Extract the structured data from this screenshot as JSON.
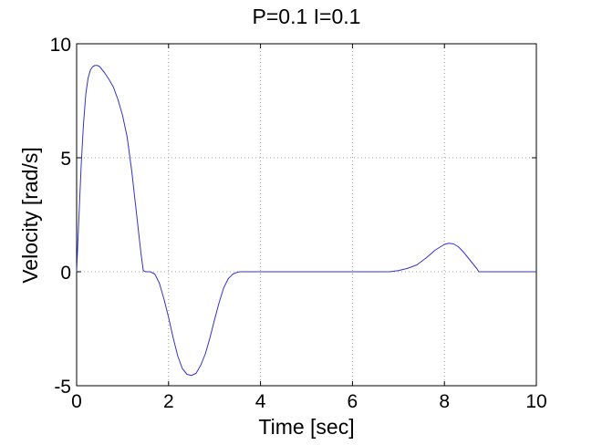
{
  "chart_data": {
    "type": "line",
    "title": "P=0.1 I=0.1",
    "xlabel": "Time [sec]",
    "ylabel": "Velocity [rad/s]",
    "xlim": [
      0,
      10
    ],
    "ylim": [
      -5,
      10
    ],
    "xticks": [
      0,
      2,
      4,
      6,
      8,
      10
    ],
    "yticks": [
      -5,
      0,
      5,
      10
    ],
    "xtick_labels": [
      "0",
      "2",
      "4",
      "6",
      "8",
      "10"
    ],
    "ytick_labels": [
      "-5",
      "0",
      "5",
      "10"
    ],
    "grid": true,
    "grid_style": "dotted",
    "legend": false,
    "series": [
      {
        "color": "#3333cc",
        "x": [
          0,
          0.05,
          0.1,
          0.15,
          0.2,
          0.25,
          0.3,
          0.35,
          0.4,
          0.45,
          0.5,
          0.6,
          0.7,
          0.8,
          0.9,
          1.0,
          1.1,
          1.2,
          1.3,
          1.4,
          1.45,
          1.5,
          1.6,
          1.7,
          1.8,
          1.9,
          2.0,
          2.1,
          2.2,
          2.3,
          2.4,
          2.5,
          2.6,
          2.7,
          2.8,
          2.9,
          3.0,
          3.1,
          3.2,
          3.3,
          3.4,
          3.5,
          3.55,
          4.0,
          5.0,
          6.0,
          6.8,
          7.0,
          7.2,
          7.4,
          7.6,
          7.8,
          8.0,
          8.1,
          8.2,
          8.3,
          8.4,
          8.5,
          8.6,
          8.7,
          8.75,
          9.0,
          10.0
        ],
        "y": [
          0,
          2.4,
          4.7,
          6.5,
          7.8,
          8.5,
          8.85,
          9.0,
          9.05,
          9.05,
          9.0,
          8.75,
          8.45,
          8.1,
          7.55,
          6.85,
          5.9,
          4.4,
          2.6,
          0.8,
          0.05,
          0.0,
          0.0,
          -0.1,
          -0.5,
          -1.2,
          -2.0,
          -2.9,
          -3.7,
          -4.25,
          -4.5,
          -4.55,
          -4.45,
          -4.1,
          -3.6,
          -2.9,
          -2.1,
          -1.35,
          -0.7,
          -0.3,
          -0.1,
          -0.02,
          0.0,
          0.0,
          0.0,
          0.0,
          0.0,
          0.05,
          0.15,
          0.3,
          0.6,
          0.95,
          1.2,
          1.25,
          1.22,
          1.1,
          0.9,
          0.65,
          0.4,
          0.15,
          0.0,
          0.0,
          0.0
        ]
      }
    ]
  }
}
